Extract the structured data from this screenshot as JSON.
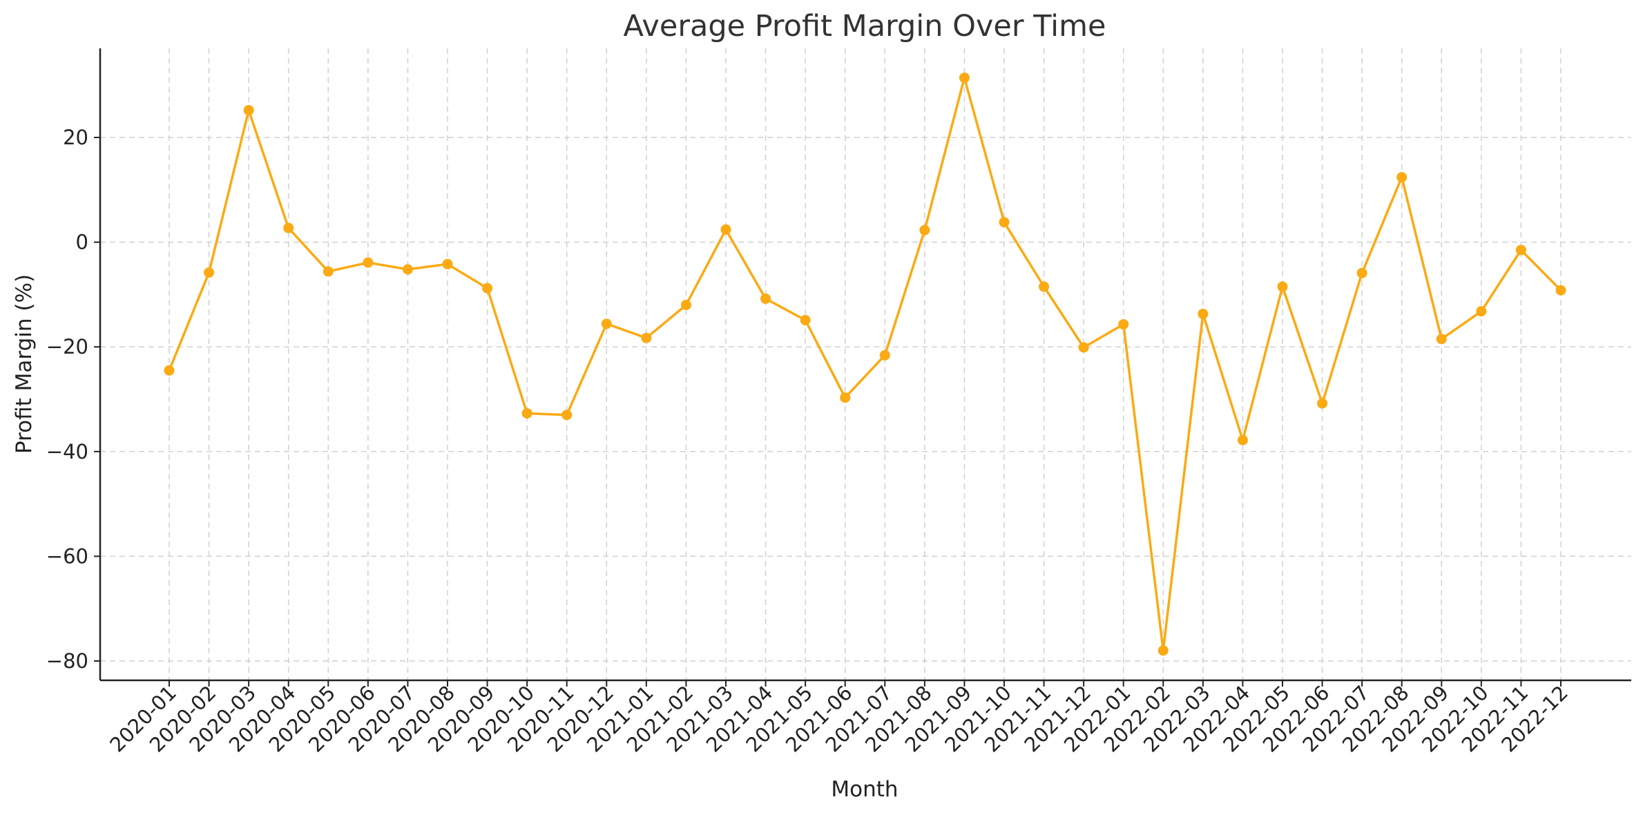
{
  "chart_data": {
    "type": "line",
    "title": "Average Profit Margin Over Time",
    "xlabel": "Month",
    "ylabel": "Profit Margin (%)",
    "ylim": [
      -84,
      37
    ],
    "yticks": [
      20,
      0,
      -20,
      -40,
      -60,
      -80
    ],
    "ytick_labels": [
      "20",
      "0",
      "−20",
      "−40",
      "−60",
      "−80"
    ],
    "grid": true,
    "legend": "none",
    "x": [
      "2020-01",
      "2020-02",
      "2020-03",
      "2020-04",
      "2020-05",
      "2020-06",
      "2020-07",
      "2020-08",
      "2020-09",
      "2020-10",
      "2020-11",
      "2020-12",
      "2021-01",
      "2021-02",
      "2021-03",
      "2021-04",
      "2021-05",
      "2021-06",
      "2021-07",
      "2021-08",
      "2021-09",
      "2021-10",
      "2021-11",
      "2021-12",
      "2022-01",
      "2022-02",
      "2022-03",
      "2022-04",
      "2022-05",
      "2022-06",
      "2022-07",
      "2022-08",
      "2022-09",
      "2022-10",
      "2022-11",
      "2022-12"
    ],
    "series": [
      {
        "color": "#FBAA13",
        "values": [
          -24.5,
          -5.8,
          25.2,
          2.7,
          -5.6,
          -3.9,
          -5.2,
          -4.2,
          -8.8,
          -32.7,
          -33.0,
          -15.6,
          -18.3,
          -12.0,
          2.4,
          -10.8,
          -14.9,
          -29.7,
          -21.6,
          2.3,
          31.4,
          3.8,
          -8.5,
          -20.1,
          -15.7,
          -78.0,
          -13.7,
          -37.8,
          -8.5,
          -30.8,
          -5.9,
          12.4,
          -18.5,
          -13.2,
          -1.5,
          -9.2
        ]
      }
    ]
  }
}
